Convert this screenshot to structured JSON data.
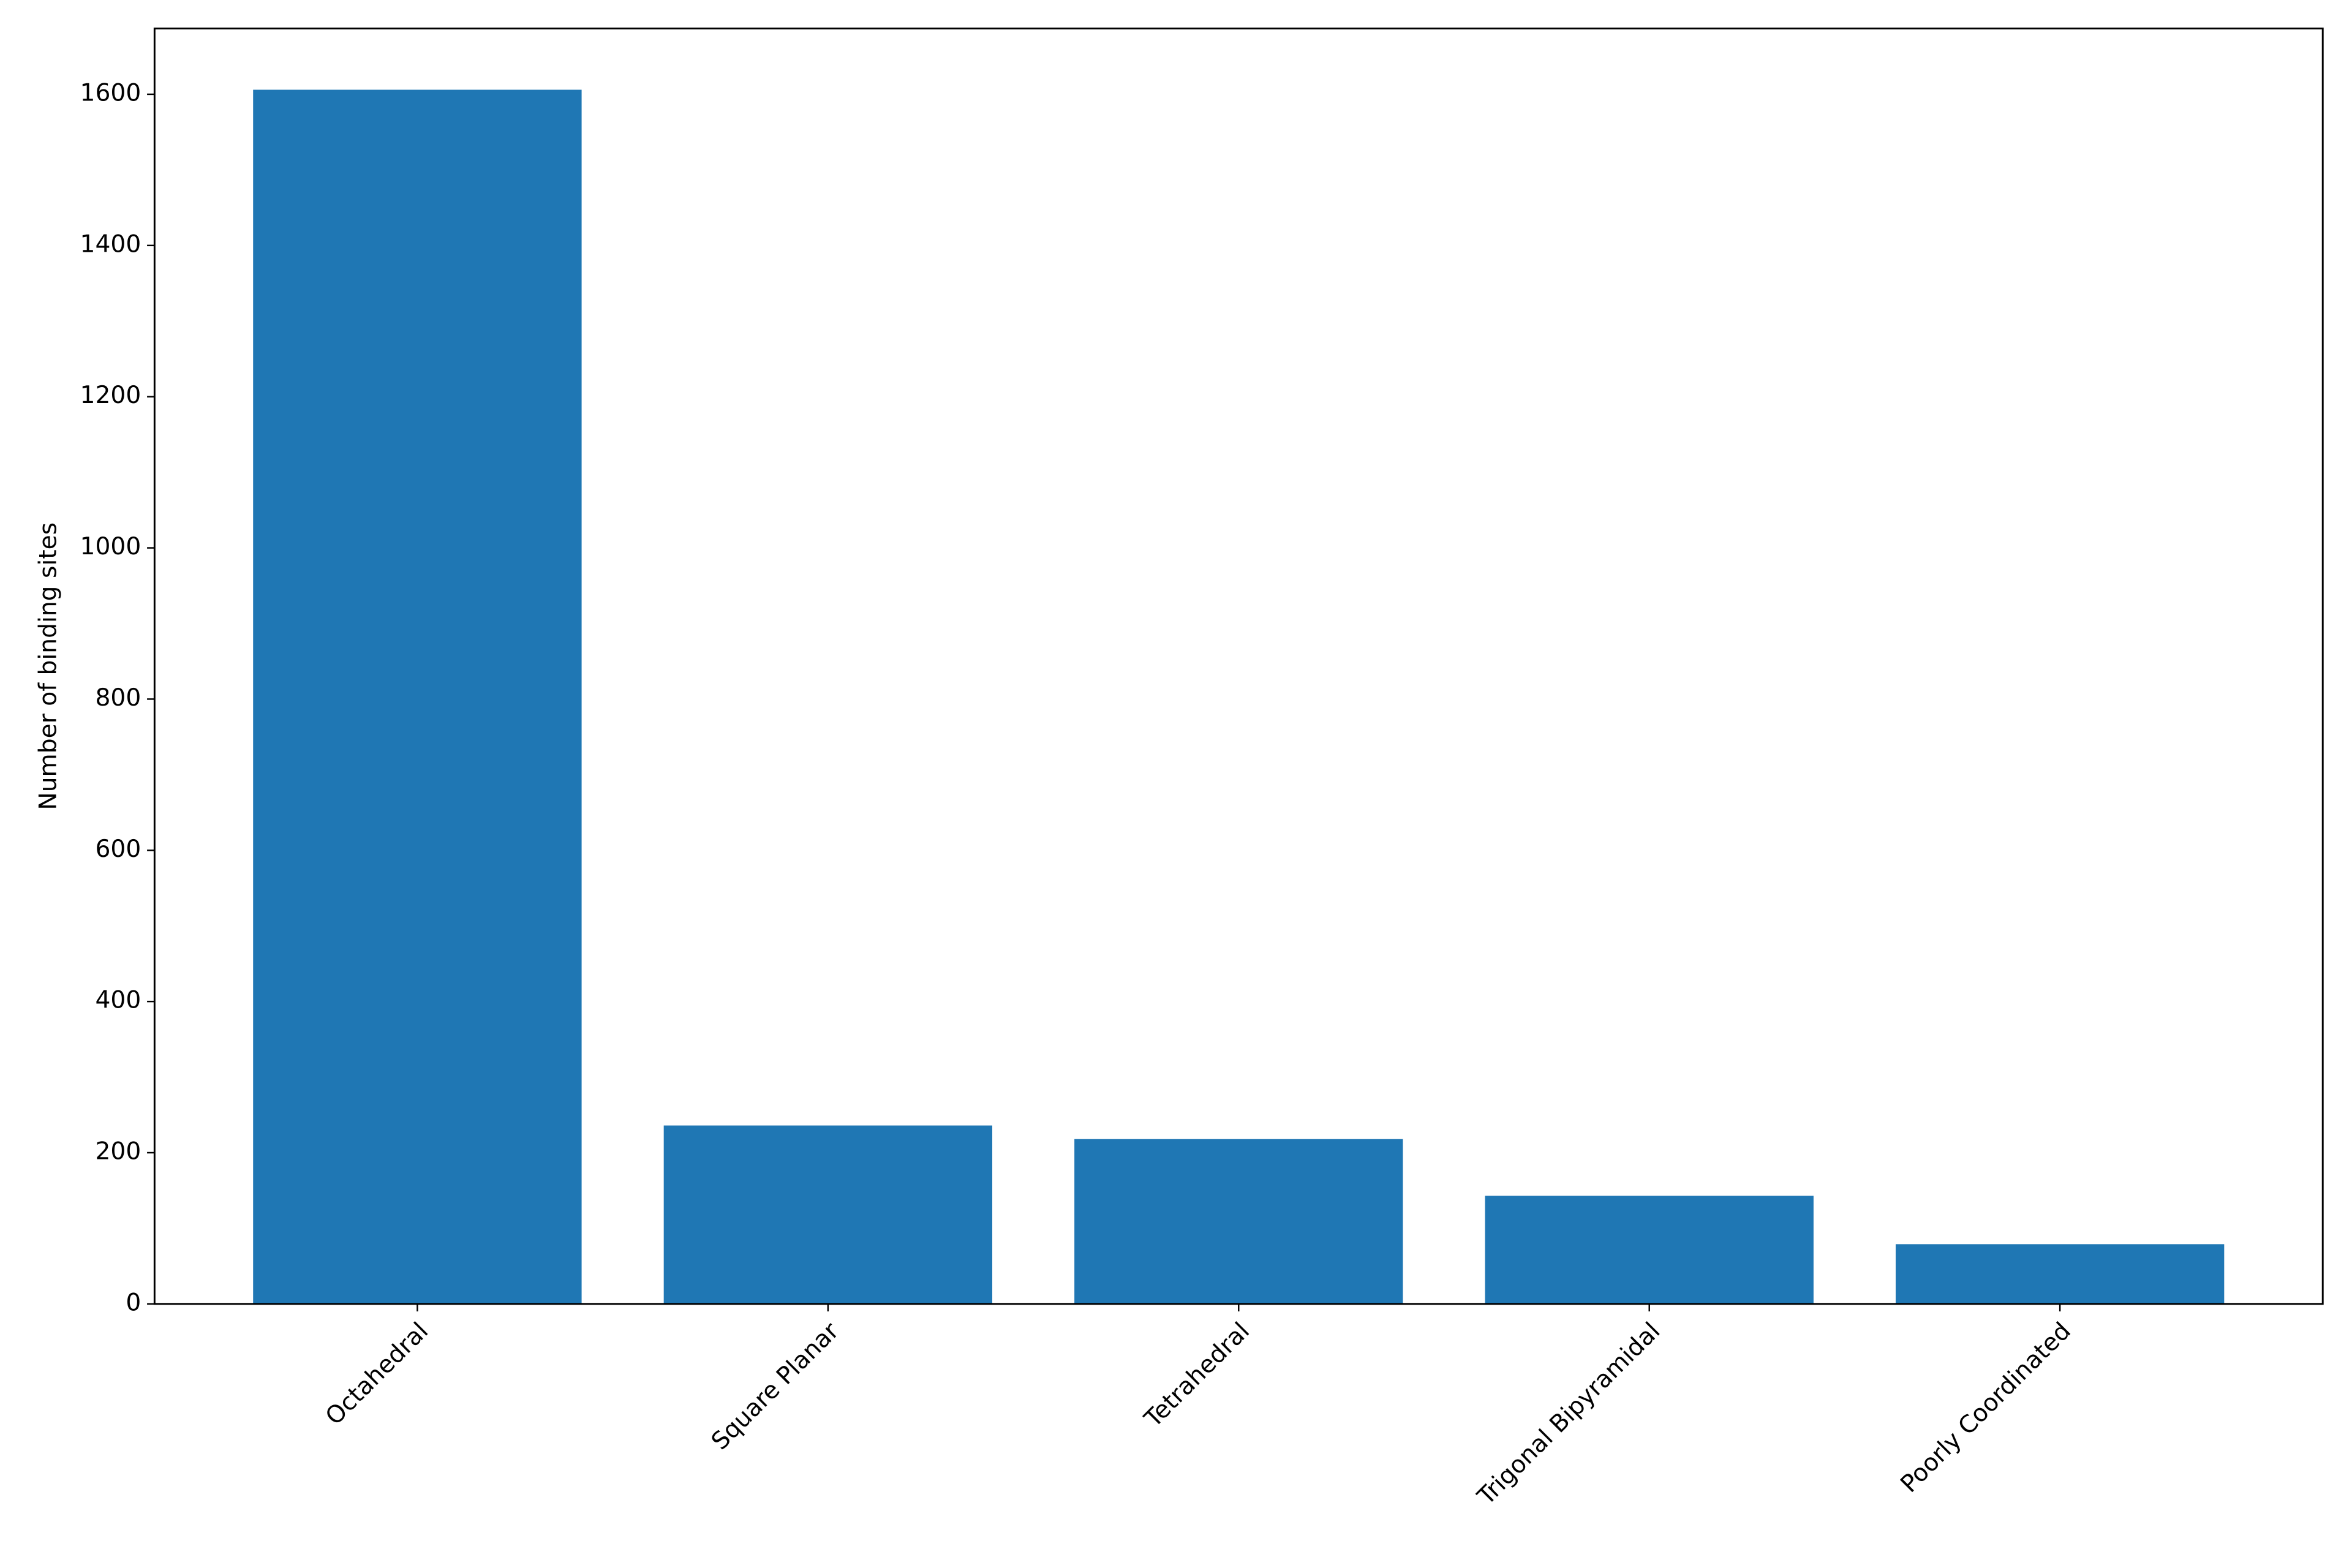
{
  "chart_data": {
    "type": "bar",
    "y_label": "Number of binding sites",
    "categories": [
      "Octahedral",
      "Square Planar",
      "Tetrahedral",
      "Trigonal Bipyramidal",
      "Poorly Coordinated"
    ],
    "values": [
      1606,
      236,
      218,
      143,
      79
    ],
    "color": "#1f77b4",
    "ylim": [
      0,
      1687
    ],
    "yticks": [
      0,
      200,
      400,
      600,
      800,
      1000,
      1200,
      1400,
      1600
    ],
    "grid": false
  }
}
